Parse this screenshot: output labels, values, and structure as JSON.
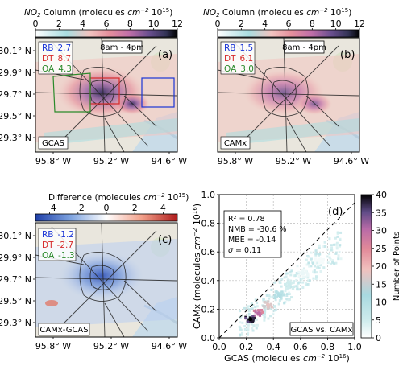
{
  "colors": {
    "rb": "#1a35d6",
    "dt": "#d62a2a",
    "oa": "#2a8a2a",
    "map_bg": "#e9e6dd",
    "water": "#c9dce8",
    "roads": "#222222"
  },
  "chart_data": [
    {
      "panel": "a",
      "type": "heatmap",
      "colorbar": {
        "label_prefix": "NO",
        "label_sub": "2",
        "label_mid": " Column (molecules ",
        "label_unit": "cm",
        "label_unit_exp": "−2",
        "label_unit_tail": " 10",
        "label_scale_exp": "15",
        "label_close": ")",
        "ticks": [
          "0",
          "2",
          "4",
          "6",
          "8",
          "10",
          "12"
        ],
        "range": [
          0,
          12
        ]
      },
      "time_label": "8am - 4pm",
      "panel_label": "(a)",
      "source_label": "GCAS",
      "regions": [
        {
          "name": "RB",
          "value": "2.7"
        },
        {
          "name": "DT",
          "value": "8.7"
        },
        {
          "name": "OA",
          "value": "4.3"
        }
      ],
      "y_ticks": [
        "30.1° N",
        "29.9° N",
        "29.7° N",
        "29.5° N",
        "29.3° N"
      ],
      "x_ticks": [
        "95.8° W",
        "95.2° W",
        "94.6° W"
      ]
    },
    {
      "panel": "b",
      "type": "heatmap",
      "colorbar": {
        "label_prefix": "NO",
        "label_sub": "2",
        "label_mid": " Column (molecules ",
        "label_unit": "cm",
        "label_unit_exp": "−2",
        "label_unit_tail": " 10",
        "label_scale_exp": "15",
        "label_close": ")",
        "ticks": [
          "0",
          "2",
          "4",
          "6",
          "8",
          "10",
          "12"
        ],
        "range": [
          0,
          12
        ]
      },
      "time_label": "8am - 4pm",
      "panel_label": "(b)",
      "source_label": "CAMx",
      "regions": [
        {
          "name": "RB",
          "value": "1.5"
        },
        {
          "name": "DT",
          "value": "6.1"
        },
        {
          "name": "OA",
          "value": "3.0"
        }
      ],
      "x_ticks": [
        "95.8° W",
        "95.2° W",
        "94.6° W"
      ]
    },
    {
      "panel": "c",
      "type": "heatmap",
      "colorbar": {
        "label_main": "Difference (molecules ",
        "label_unit": "cm",
        "label_unit_exp": "−2",
        "label_unit_tail": " 10",
        "label_scale_exp": "15",
        "label_close": ")",
        "ticks": [
          "−4",
          "−2",
          "0",
          "2",
          "4"
        ],
        "range": [
          -5,
          5
        ]
      },
      "panel_label": "(c)",
      "source_label": "CAMx-GCAS",
      "regions": [
        {
          "name": "RB",
          "value": "-1.2"
        },
        {
          "name": "DT",
          "value": "-2.7"
        },
        {
          "name": "OA",
          "value": "-1.3"
        }
      ],
      "y_ticks": [
        "30.1° N",
        "29.9° N",
        "29.7° N",
        "29.5° N",
        "29.3° N"
      ],
      "x_ticks": [
        "95.8° W",
        "95.2° W",
        "94.6° W"
      ]
    },
    {
      "panel": "d",
      "type": "scatter",
      "panel_label": "(d)",
      "xlabel": "GCAS (molecules cm−2 10¹⁶)",
      "ylabel": "CAMx (molecules cm−2 10¹⁶)",
      "xlabel_parts": {
        "main": "GCAS (molecules ",
        "unit": "cm",
        "unit_exp": "−2",
        "tail": " 10",
        "scale_exp": "16",
        "close": ")"
      },
      "ylabel_parts": {
        "main": "CAMx (molecules ",
        "unit": "cm",
        "unit_exp": "−2",
        "tail": " 10",
        "scale_exp": "16",
        "close": ")"
      },
      "xlim": [
        0,
        1
      ],
      "ylim": [
        0,
        1
      ],
      "x_ticks": [
        "0.0",
        "0.2",
        "0.4",
        "0.6",
        "0.8",
        "1.0"
      ],
      "y_ticks": [
        "0.0",
        "0.2",
        "0.4",
        "0.6",
        "0.8",
        "1.0"
      ],
      "grid": true,
      "one_to_one_line": true,
      "stats": [
        {
          "label": "R²",
          "value": "0.78"
        },
        {
          "label": "NMB",
          "value": "-30.6 %"
        },
        {
          "label": "MBE",
          "value": "-0.14"
        },
        {
          "label": "σ",
          "value": "0.11"
        }
      ],
      "comparison_label": "GCAS vs. CAMx",
      "colorbar": {
        "label": "Number of Points",
        "ticks": [
          "0",
          "5",
          "10",
          "15",
          "20",
          "25",
          "30",
          "35",
          "40"
        ],
        "range": [
          0,
          40
        ]
      },
      "density_clusters": [
        {
          "x": 0.23,
          "y": 0.13,
          "count": 40
        },
        {
          "x": 0.29,
          "y": 0.17,
          "count": 30
        },
        {
          "x": 0.36,
          "y": 0.23,
          "count": 18
        },
        {
          "x": 0.44,
          "y": 0.3,
          "count": 10
        },
        {
          "x": 0.52,
          "y": 0.37,
          "count": 5
        },
        {
          "x": 0.62,
          "y": 0.45,
          "count": 2
        },
        {
          "x": 0.74,
          "y": 0.53,
          "count": 1
        }
      ]
    }
  ]
}
